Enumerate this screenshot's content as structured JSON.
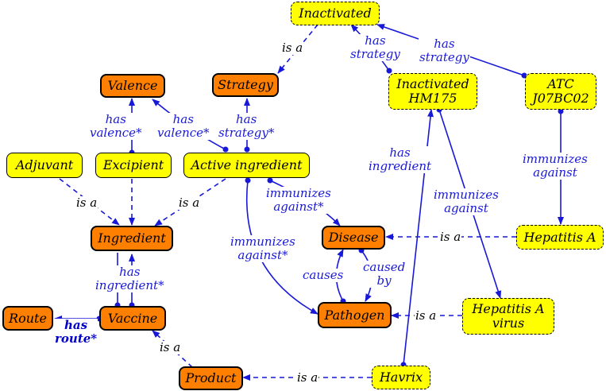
{
  "nodes": {
    "inactivated": "Inactivated",
    "strategy": "Strategy",
    "valence": "Valence",
    "inactivated_hm175": "Inactivated\nHM175",
    "atc_j07bc02": "ATC\nJ07BC02",
    "adjuvant": "Adjuvant",
    "excipient": "Excipient",
    "active_ingredient": "Active ingredient",
    "ingredient": "Ingredient",
    "disease": "Disease",
    "hepatitis_a": "Hepatitis A",
    "route": "Route",
    "vaccine": "Vaccine",
    "pathogen": "Pathogen",
    "hepatitis_a_virus": "Hepatitis A\nvirus",
    "product": "Product",
    "havrix": "Havrix"
  },
  "edges": {
    "strategy_is_a": "is a",
    "hm175_has_strategy": "has\nstrategy",
    "atc_has_strategy": "has\nstrategy",
    "excipient_has_valence": "has\nvalence*",
    "active_has_valence": "has\nvalence*",
    "active_has_strategy": "has\nstrategy*",
    "havrix_has_ingredient": "has\ningredient",
    "atc_immunizes_against": "immunizes\nagainst",
    "adjuvant_excipient_is_a": "is a",
    "active_is_a": "is a",
    "active_immunizes_against_disease": "immunizes\nagainst*",
    "hm175_immunizes_against": "immunizes\nagainst",
    "hepatitis_is_a": "is a",
    "active_immunizes_against_pathogen": "immunizes\nagainst*",
    "pathogen_causes": "causes",
    "disease_caused_by": "caused\nby",
    "vaccine_has_ingredient": "has\ningredient*",
    "vaccine_has_route": "has\nroute*",
    "virus_is_a": "is a",
    "product_is_a": "is a",
    "havrix_is_a": "is a"
  },
  "colors": {
    "class_node": "#ff8000",
    "instance_node": "#ffff00",
    "edge_blue": "#1818d8",
    "is_a_dashed": "#1818d8"
  }
}
